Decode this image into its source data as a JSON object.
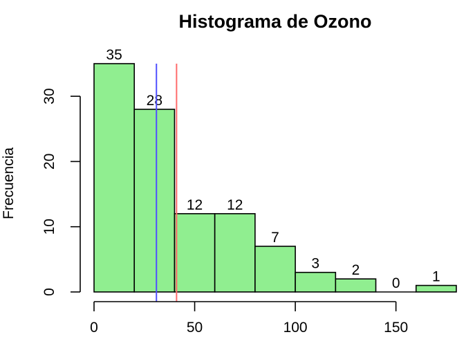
{
  "chart_data": {
    "type": "bar",
    "title": "Histograma de Ozono",
    "xlabel": "",
    "ylabel": "Frecuencia",
    "bin_edges": [
      0,
      20,
      40,
      60,
      80,
      100,
      120,
      140,
      160,
      180
    ],
    "values": [
      35,
      28,
      12,
      12,
      7,
      3,
      2,
      0,
      1
    ],
    "data_labels": [
      "35",
      "28",
      "12",
      "12",
      "7",
      "3",
      "2",
      "0",
      "1"
    ],
    "xlim": [
      0,
      180
    ],
    "ylim": [
      0,
      35
    ],
    "x_ticks": [
      0,
      50,
      100,
      150
    ],
    "x_tick_labels": [
      "0",
      "50",
      "100",
      "150"
    ],
    "y_ticks": [
      0,
      10,
      20,
      30
    ],
    "y_tick_labels": [
      "0",
      "10",
      "20",
      "30"
    ],
    "vertical_lines": [
      {
        "x": 31,
        "color": "#4f4fff"
      },
      {
        "x": 41,
        "color": "#ff6b6b"
      }
    ],
    "bar_color": "#90ee90",
    "bar_edge_color": "#000000",
    "grid": false,
    "legend": "none"
  }
}
